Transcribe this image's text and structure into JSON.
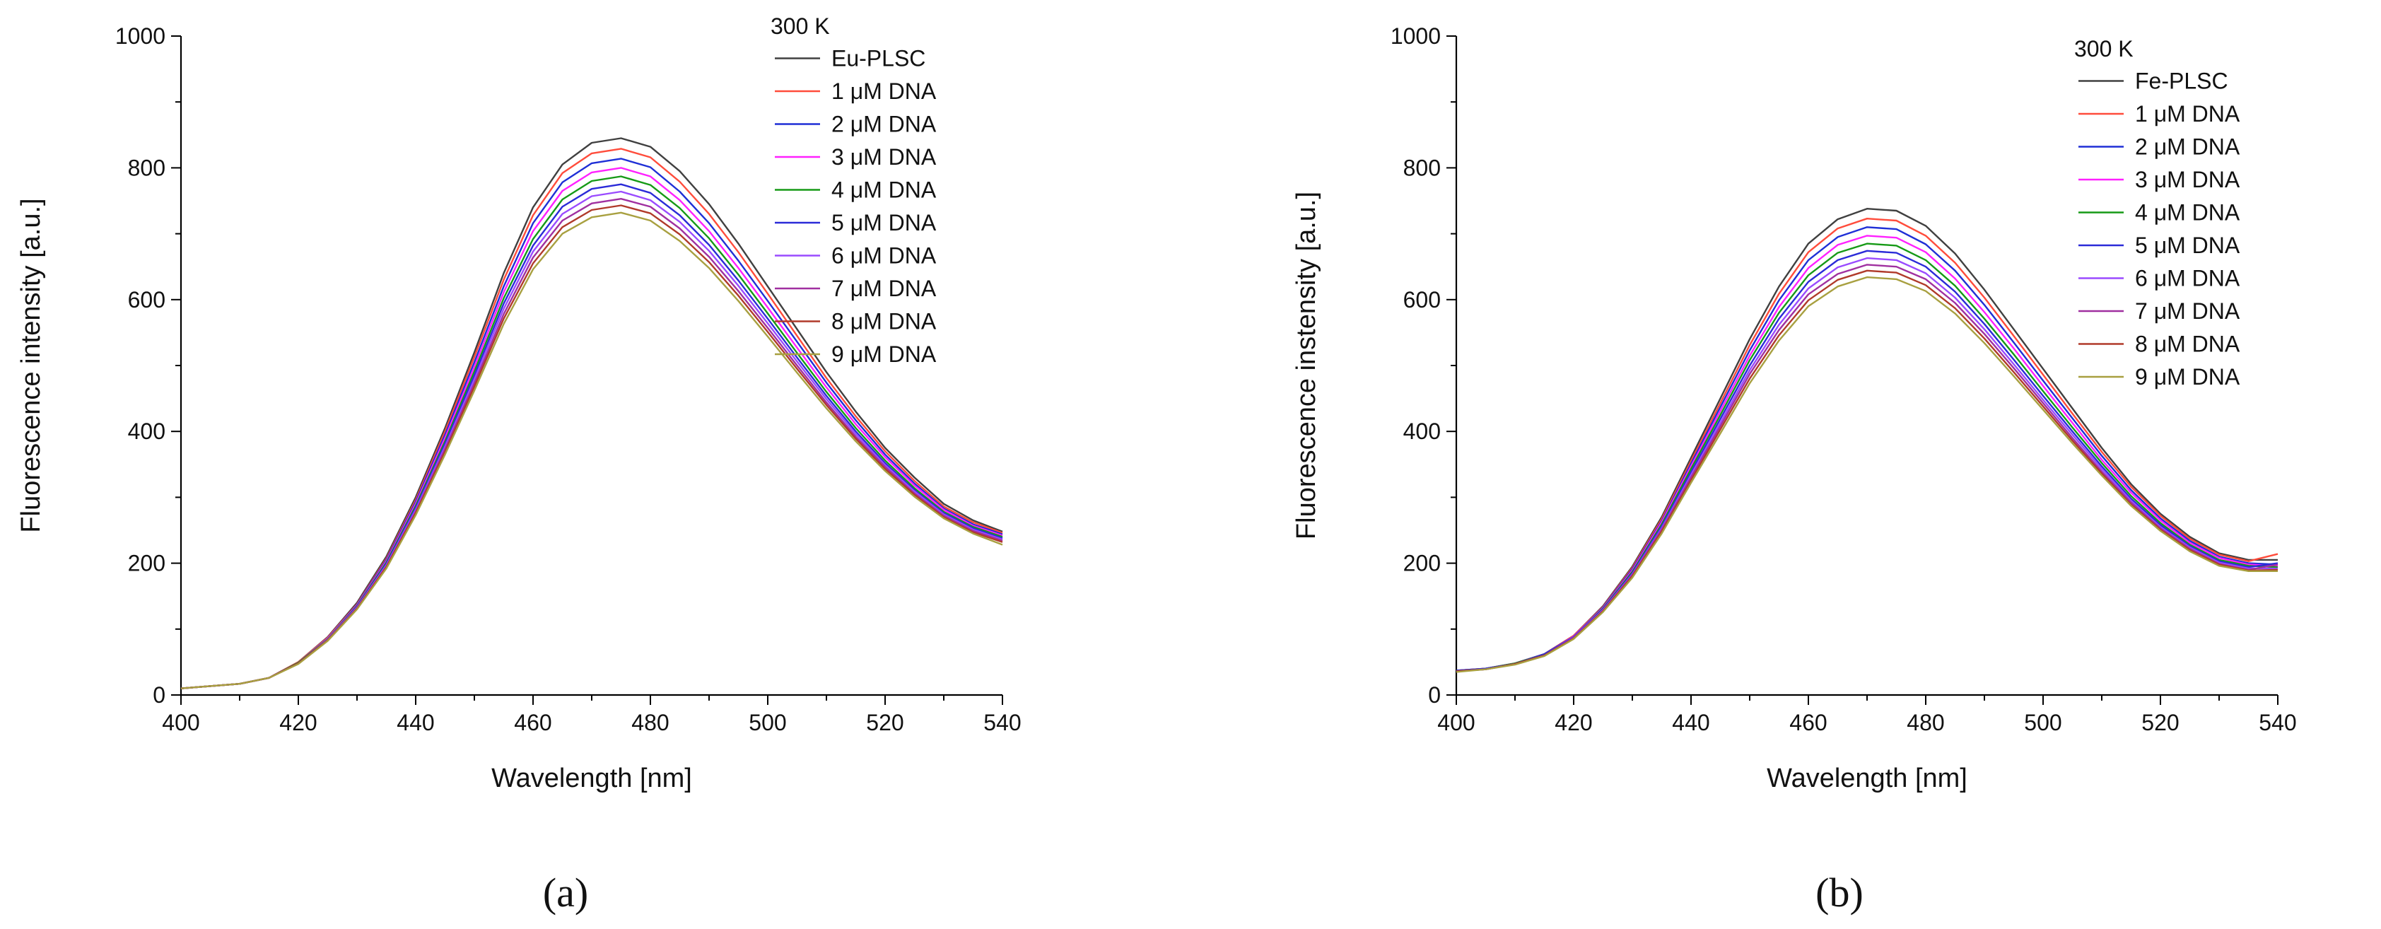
{
  "chart_data": [
    {
      "type": "line",
      "panel_label": "(a)",
      "xlabel": "Wavelength [nm]",
      "ylabel": "Fluorescence intensity [a.u.]",
      "xlim": [
        400,
        540
      ],
      "ylim": [
        0,
        1000
      ],
      "xticks": [
        "400",
        "420",
        "440",
        "460",
        "480",
        "500",
        "520",
        "540"
      ],
      "yticks": [
        "0",
        "200",
        "400",
        "600",
        "800",
        "1000"
      ],
      "grid": false,
      "legend_title": "300 K",
      "legend_position": "top-right",
      "x": [
        400,
        410,
        415,
        420,
        425,
        430,
        435,
        440,
        445,
        450,
        455,
        460,
        465,
        470,
        475,
        480,
        485,
        490,
        495,
        500,
        505,
        510,
        515,
        520,
        525,
        530,
        535,
        540
      ],
      "series": [
        {
          "name": "Eu-PLSC",
          "color": "#404040",
          "values": [
            10,
            17,
            26,
            50,
            88,
            140,
            210,
            300,
            405,
            520,
            640,
            740,
            805,
            838,
            845,
            832,
            795,
            745,
            685,
            620,
            555,
            490,
            430,
            375,
            330,
            290,
            265,
            248
          ]
        },
        {
          "name": "1 μM DNA",
          "color": "#ff4c3b",
          "values": [
            10,
            17,
            26,
            50,
            87,
            138,
            207,
            296,
            400,
            513,
            630,
            728,
            792,
            822,
            829,
            816,
            779,
            730,
            672,
            609,
            545,
            481,
            423,
            370,
            325,
            286,
            262,
            246
          ]
        },
        {
          "name": "2 μM DNA",
          "color": "#1f2fd6",
          "values": [
            10,
            17,
            26,
            49,
            86,
            137,
            205,
            293,
            395,
            505,
            620,
            716,
            778,
            807,
            814,
            801,
            764,
            716,
            659,
            598,
            536,
            474,
            417,
            365,
            321,
            283,
            259,
            244
          ]
        },
        {
          "name": "3 μM DNA",
          "color": "#ff20ff",
          "values": [
            10,
            17,
            26,
            49,
            86,
            136,
            203,
            290,
            390,
            498,
            611,
            704,
            765,
            793,
            800,
            787,
            751,
            704,
            648,
            588,
            527,
            467,
            411,
            361,
            318,
            281,
            257,
            242
          ]
        },
        {
          "name": "4 μM DNA",
          "color": "#169a16",
          "values": [
            10,
            17,
            26,
            49,
            85,
            135,
            201,
            287,
            385,
            491,
            602,
            692,
            752,
            780,
            787,
            774,
            739,
            693,
            638,
            579,
            519,
            460,
            405,
            356,
            314,
            278,
            255,
            240
          ]
        },
        {
          "name": "5 μM DNA",
          "color": "#2b2bd8",
          "values": [
            10,
            17,
            26,
            48,
            84,
            134,
            199,
            284,
            381,
            485,
            594,
            682,
            741,
            768,
            775,
            762,
            728,
            683,
            629,
            571,
            512,
            454,
            400,
            352,
            311,
            276,
            253,
            238
          ]
        },
        {
          "name": "6 μM DNA",
          "color": "#9a4bff",
          "values": [
            10,
            17,
            26,
            48,
            84,
            133,
            197,
            281,
            377,
            479,
            586,
            673,
            730,
            757,
            764,
            751,
            718,
            674,
            621,
            564,
            506,
            449,
            396,
            349,
            309,
            274,
            251,
            236
          ]
        },
        {
          "name": "7 μM DNA",
          "color": "#a030a0",
          "values": [
            10,
            17,
            26,
            48,
            83,
            132,
            195,
            278,
            373,
            473,
            578,
            664,
            720,
            746,
            753,
            741,
            708,
            665,
            613,
            557,
            500,
            444,
            392,
            346,
            306,
            272,
            249,
            234
          ]
        },
        {
          "name": "8 μM DNA",
          "color": "#b03a2a",
          "values": [
            10,
            17,
            26,
            48,
            83,
            131,
            194,
            276,
            369,
            468,
            571,
            655,
            710,
            736,
            743,
            731,
            699,
            657,
            606,
            551,
            495,
            440,
            389,
            343,
            304,
            270,
            247,
            232
          ]
        },
        {
          "name": "9 μM DNA",
          "color": "#a8a040",
          "values": [
            10,
            17,
            26,
            47,
            82,
            130,
            192,
            273,
            365,
            462,
            563,
            646,
            700,
            725,
            732,
            720,
            689,
            648,
            598,
            544,
            489,
            435,
            385,
            340,
            301,
            268,
            245,
            228
          ]
        }
      ]
    },
    {
      "type": "line",
      "panel_label": "(b)",
      "xlabel": "Wavelength [nm]",
      "ylabel": "Fluorescence instensity [a.u.]",
      "xlim": [
        400,
        540
      ],
      "ylim": [
        0,
        1000
      ],
      "xticks": [
        "400",
        "420",
        "440",
        "460",
        "480",
        "500",
        "520",
        "540"
      ],
      "yticks": [
        "0",
        "200",
        "400",
        "600",
        "800",
        "1000"
      ],
      "grid": false,
      "legend_title": "300 K",
      "legend_position": "top-right",
      "x": [
        400,
        405,
        410,
        415,
        420,
        425,
        430,
        435,
        440,
        445,
        450,
        455,
        460,
        465,
        470,
        475,
        480,
        485,
        490,
        495,
        500,
        505,
        510,
        515,
        520,
        525,
        530,
        535,
        540
      ],
      "series": [
        {
          "name": "Fe-PLSC",
          "color": "#404040",
          "values": [
            37,
            40,
            48,
            62,
            90,
            135,
            195,
            270,
            360,
            450,
            540,
            620,
            685,
            722,
            738,
            735,
            712,
            670,
            615,
            555,
            495,
            435,
            375,
            320,
            275,
            240,
            215,
            205,
            205
          ]
        },
        {
          "name": "1 μM DNA",
          "color": "#ff4c3b",
          "values": [
            37,
            40,
            48,
            62,
            90,
            134,
            193,
            267,
            355,
            443,
            531,
            609,
            672,
            708,
            723,
            720,
            697,
            656,
            603,
            545,
            486,
            427,
            369,
            316,
            272,
            237,
            213,
            203,
            214
          ]
        },
        {
          "name": "2 μM DNA",
          "color": "#1f2fd6",
          "values": [
            37,
            40,
            48,
            62,
            89,
            133,
            191,
            264,
            351,
            437,
            523,
            599,
            660,
            695,
            710,
            707,
            684,
            644,
            592,
            535,
            477,
            420,
            363,
            311,
            268,
            234,
            210,
            200,
            198
          ]
        },
        {
          "name": "3 μM DNA",
          "color": "#ff20ff",
          "values": [
            36,
            40,
            48,
            61,
            89,
            132,
            189,
            262,
            347,
            431,
            515,
            589,
            648,
            683,
            697,
            694,
            672,
            632,
            581,
            526,
            469,
            413,
            357,
            307,
            265,
            231,
            208,
            198,
            196
          ]
        },
        {
          "name": "4 μM DNA",
          "color": "#169a16",
          "values": [
            36,
            40,
            48,
            61,
            88,
            131,
            187,
            259,
            343,
            425,
            508,
            580,
            637,
            671,
            685,
            682,
            660,
            621,
            571,
            517,
            461,
            406,
            352,
            302,
            261,
            228,
            205,
            196,
            194
          ]
        },
        {
          "name": "5 μM DNA",
          "color": "#2b2bd8",
          "values": [
            36,
            40,
            47,
            61,
            88,
            130,
            185,
            256,
            338,
            419,
            500,
            571,
            627,
            660,
            674,
            671,
            650,
            612,
            563,
            509,
            454,
            400,
            347,
            298,
            258,
            226,
            203,
            194,
            200
          ]
        },
        {
          "name": "6 μM DNA",
          "color": "#9a4bff",
          "values": [
            36,
            39,
            47,
            60,
            87,
            129,
            183,
            253,
            334,
            413,
            493,
            562,
            617,
            649,
            663,
            660,
            640,
            603,
            555,
            502,
            448,
            395,
            343,
            295,
            255,
            224,
            201,
            192,
            192
          ]
        },
        {
          "name": "7 μM DNA",
          "color": "#a030a0",
          "values": [
            36,
            39,
            47,
            60,
            86,
            128,
            182,
            251,
            330,
            408,
            487,
            554,
            608,
            639,
            653,
            650,
            631,
            595,
            548,
            496,
            443,
            390,
            339,
            292,
            253,
            222,
            199,
            190,
            198
          ]
        },
        {
          "name": "8 μM DNA",
          "color": "#b03a2a",
          "values": [
            36,
            39,
            47,
            60,
            86,
            127,
            180,
            248,
            326,
            403,
            480,
            546,
            599,
            630,
            644,
            641,
            622,
            587,
            541,
            490,
            438,
            386,
            336,
            289,
            251,
            220,
            198,
            189,
            190
          ]
        },
        {
          "name": "9 μM DNA",
          "color": "#a8a040",
          "values": [
            35,
            39,
            46,
            59,
            85,
            126,
            178,
            245,
            322,
            397,
            473,
            538,
            590,
            620,
            634,
            631,
            613,
            579,
            534,
            484,
            433,
            382,
            333,
            287,
            249,
            218,
            196,
            188,
            188
          ]
        }
      ]
    }
  ]
}
